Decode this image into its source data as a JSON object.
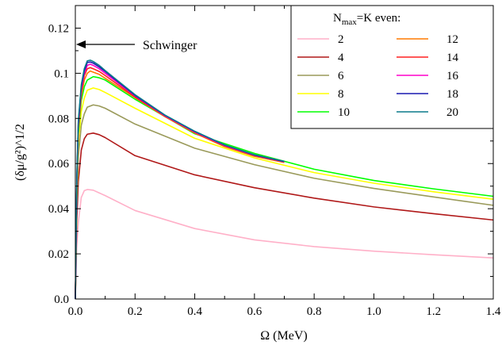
{
  "chart_data": {
    "type": "line",
    "xlabel": "Ω (MeV)",
    "ylabel": "(δμ/g²)^1/2",
    "xlim": [
      0,
      1.4
    ],
    "ylim": [
      0,
      0.13
    ],
    "xticks": [
      "0.0",
      "0.2",
      "0.4",
      "0.6",
      "0.8",
      "1.0",
      "1.2",
      "1.4"
    ],
    "yticks": [
      "0.0",
      "0.02",
      "0.04",
      "0.06",
      "0.08",
      "0.1",
      "0.12"
    ],
    "grid": false,
    "legend": {
      "title": "N_max=K even:",
      "position": "top-right"
    },
    "annotation": {
      "text": "Schwinger",
      "y": 0.1125
    },
    "series": [
      {
        "name": "2",
        "color": "#ffb0c8",
        "x": [
          0.0,
          0.005,
          0.01,
          0.02,
          0.03,
          0.04,
          0.06,
          0.08,
          0.1,
          0.2,
          0.4,
          0.6,
          0.8,
          1.0,
          1.2,
          1.4
        ],
        "y": [
          0.0,
          0.024,
          0.034,
          0.045,
          0.048,
          0.0485,
          0.0482,
          0.047,
          0.0458,
          0.0392,
          0.0312,
          0.0262,
          0.0232,
          0.0212,
          0.0196,
          0.0182
        ]
      },
      {
        "name": "4",
        "color": "#b01818",
        "x": [
          0.0,
          0.005,
          0.01,
          0.02,
          0.03,
          0.04,
          0.06,
          0.08,
          0.1,
          0.2,
          0.4,
          0.6,
          0.8,
          1.0,
          1.2,
          1.4
        ],
        "y": [
          0.0,
          0.035,
          0.052,
          0.066,
          0.071,
          0.073,
          0.0735,
          0.0728,
          0.0715,
          0.0635,
          0.055,
          0.0493,
          0.0447,
          0.0408,
          0.0378,
          0.035
        ]
      },
      {
        "name": "6",
        "color": "#9a9a5a",
        "x": [
          0.0,
          0.005,
          0.01,
          0.02,
          0.03,
          0.04,
          0.06,
          0.08,
          0.1,
          0.2,
          0.4,
          0.6,
          0.8,
          1.0,
          1.2,
          1.4
        ],
        "y": [
          0.0,
          0.042,
          0.063,
          0.077,
          0.082,
          0.085,
          0.086,
          0.0855,
          0.0845,
          0.0775,
          0.0668,
          0.0595,
          0.0535,
          0.049,
          0.0452,
          0.0415
        ]
      },
      {
        "name": "8",
        "color": "#ffff00",
        "x": [
          0.0,
          0.005,
          0.01,
          0.02,
          0.03,
          0.04,
          0.06,
          0.08,
          0.1,
          0.2,
          0.4,
          0.6,
          0.8,
          1.0,
          1.2,
          1.4
        ],
        "y": [
          0.0,
          0.046,
          0.069,
          0.083,
          0.089,
          0.0925,
          0.0935,
          0.0928,
          0.0915,
          0.0845,
          0.0712,
          0.0625,
          0.056,
          0.0513,
          0.0475,
          0.0442
        ]
      },
      {
        "name": "10",
        "color": "#00ff00",
        "x": [
          0.0,
          0.005,
          0.01,
          0.02,
          0.03,
          0.04,
          0.06,
          0.08,
          0.1,
          0.2,
          0.4,
          0.6,
          0.8,
          1.0,
          1.2,
          1.4
        ],
        "y": [
          0.0,
          0.049,
          0.073,
          0.088,
          0.094,
          0.097,
          0.0985,
          0.098,
          0.097,
          0.0885,
          0.0732,
          0.0645,
          0.0575,
          0.0525,
          0.0488,
          0.0455
        ]
      },
      {
        "name": "12",
        "color": "#ff7a00",
        "x": [
          0.0,
          0.005,
          0.01,
          0.02,
          0.03,
          0.04,
          0.05,
          0.06,
          0.08,
          0.1,
          0.2,
          0.3,
          0.4,
          0.5,
          0.6,
          0.7
        ],
        "y": [
          0.0,
          0.05,
          0.075,
          0.09,
          0.097,
          0.1,
          0.101,
          0.1005,
          0.0995,
          0.0978,
          0.0892,
          0.0808,
          0.0735,
          0.0675,
          0.0632,
          0.0605
        ]
      },
      {
        "name": "14",
        "color": "#ff2020",
        "x": [
          0.0,
          0.005,
          0.01,
          0.02,
          0.03,
          0.04,
          0.05,
          0.06,
          0.08,
          0.1,
          0.2,
          0.3,
          0.4,
          0.5,
          0.6,
          0.7
        ],
        "y": [
          0.0,
          0.051,
          0.076,
          0.092,
          0.099,
          0.102,
          0.1025,
          0.102,
          0.1008,
          0.099,
          0.0895,
          0.081,
          0.0738,
          0.0678,
          0.0635,
          0.0607
        ]
      },
      {
        "name": "16",
        "color": "#ff00cc",
        "x": [
          0.0,
          0.005,
          0.01,
          0.02,
          0.03,
          0.04,
          0.05,
          0.06,
          0.08,
          0.1,
          0.2,
          0.3,
          0.4,
          0.5,
          0.6,
          0.7
        ],
        "y": [
          0.0,
          0.052,
          0.077,
          0.093,
          0.1,
          0.1035,
          0.104,
          0.1035,
          0.102,
          0.1,
          0.09,
          0.0812,
          0.074,
          0.068,
          0.0637,
          0.0608
        ]
      },
      {
        "name": "18",
        "color": "#1818b0",
        "x": [
          0.0,
          0.005,
          0.01,
          0.02,
          0.03,
          0.04,
          0.05,
          0.06,
          0.08,
          0.1,
          0.2,
          0.3,
          0.4,
          0.5,
          0.6,
          0.7
        ],
        "y": [
          0.0,
          0.053,
          0.078,
          0.094,
          0.101,
          0.1048,
          0.105,
          0.1045,
          0.1028,
          0.1008,
          0.0902,
          0.0814,
          0.0742,
          0.0682,
          0.0638,
          0.0609
        ]
      },
      {
        "name": "20",
        "color": "#0a7a8a",
        "x": [
          0.0,
          0.005,
          0.01,
          0.02,
          0.03,
          0.04,
          0.05,
          0.06,
          0.08,
          0.1,
          0.2,
          0.3,
          0.4,
          0.5,
          0.6,
          0.7
        ],
        "y": [
          0.0,
          0.054,
          0.079,
          0.095,
          0.102,
          0.1055,
          0.1058,
          0.1052,
          0.1035,
          0.1012,
          0.0905,
          0.0815,
          0.0743,
          0.0683,
          0.0639,
          0.061
        ]
      }
    ]
  }
}
